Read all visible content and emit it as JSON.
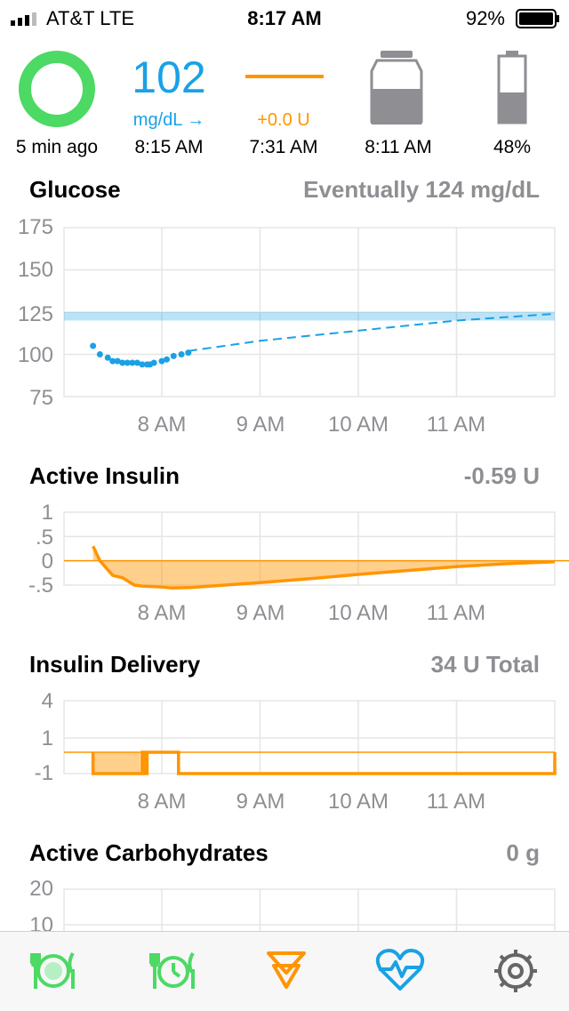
{
  "status_bar": {
    "carrier": "AT&T   LTE",
    "time": "8:17 AM",
    "battery": "92%"
  },
  "hud": {
    "loop_status": {
      "caption": "5 min ago",
      "color": "#4cd964"
    },
    "glucose": {
      "value": "102",
      "unit": "mg/dL →",
      "time": "8:15 AM",
      "color": "#1aa1e6"
    },
    "basal": {
      "value": "+0.0 U",
      "time": "7:31 AM",
      "color": "#ff9500"
    },
    "reservoir": {
      "time": "8:11 AM",
      "icon": "reservoir-icon",
      "level": 0.5
    },
    "pump_battery": {
      "value": "48%",
      "icon": "battery-icon",
      "level": 0.48
    }
  },
  "sections": {
    "glucose": {
      "title": "Glucose",
      "value": "Eventually 124 mg/dL"
    },
    "insulin": {
      "title": "Active Insulin",
      "value": "-0.59 U"
    },
    "delivery": {
      "title": "Insulin Delivery",
      "value": "34 U Total"
    },
    "carbs": {
      "title": "Active Carbohydrates",
      "value": "0 g"
    }
  },
  "time_axis": [
    "8 AM",
    "9 AM",
    "10 AM",
    "11 AM"
  ],
  "chart_data": [
    {
      "type": "scatter",
      "title": "Glucose",
      "y_ticks": [
        "175",
        "150",
        "125",
        "100",
        "75"
      ],
      "ylim": [
        75,
        175
      ],
      "target_range": [
        120,
        125
      ],
      "x_hours": [
        7.3,
        7.37,
        7.45,
        7.5,
        7.55,
        7.6,
        7.65,
        7.7,
        7.75,
        7.8,
        7.85,
        7.88,
        7.92,
        8.0,
        8.05,
        8.12,
        8.2,
        8.27
      ],
      "values": [
        105,
        100,
        98,
        96,
        96,
        95,
        95,
        95,
        95,
        94,
        94,
        94,
        95,
        96,
        97,
        99,
        100,
        101
      ],
      "prediction_x": [
        8.27,
        9.0,
        10.0,
        11.0,
        12.0
      ],
      "prediction_y": [
        102,
        108,
        114,
        120,
        124
      ],
      "color": "#1aa1e6"
    },
    {
      "type": "area",
      "title": "Active Insulin",
      "y_ticks": [
        "1",
        ".5",
        "0",
        "-.5"
      ],
      "ylim": [
        -0.5,
        1
      ],
      "x_hours": [
        7.3,
        7.37,
        7.5,
        7.6,
        7.72,
        7.8,
        8.0,
        8.1,
        8.3,
        8.5,
        9.0,
        9.5,
        10.0,
        10.5,
        11.0,
        11.5,
        12.0
      ],
      "values": [
        0.3,
        0.0,
        -0.3,
        -0.35,
        -0.5,
        -0.52,
        -0.54,
        -0.56,
        -0.55,
        -0.52,
        -0.45,
        -0.37,
        -0.28,
        -0.2,
        -0.12,
        -0.06,
        -0.02
      ],
      "color": "#ff9500"
    },
    {
      "type": "area",
      "title": "Insulin Delivery",
      "y_ticks": [
        "4",
        "1",
        "-1"
      ],
      "ylim": [
        -1,
        4
      ],
      "x_hours": [
        7.3,
        7.78,
        7.8,
        7.82,
        7.85,
        8.15,
        8.17,
        12.0
      ],
      "values": [
        -1,
        -1,
        0,
        -1,
        0,
        0,
        -1,
        0
      ],
      "color": "#ff9500"
    },
    {
      "type": "area",
      "title": "Active Carbohydrates",
      "y_ticks": [
        "20",
        "10"
      ],
      "values": []
    }
  ],
  "tabs": [
    {
      "icon": "meal-icon",
      "color": "#4cd964"
    },
    {
      "icon": "meal-timer-icon",
      "color": "#4cd964"
    },
    {
      "icon": "bolus-icon",
      "color": "#ff9500"
    },
    {
      "icon": "workout-heart-icon",
      "color": "#1aa1e6"
    },
    {
      "icon": "settings-gear-icon",
      "color": "#666666"
    }
  ]
}
